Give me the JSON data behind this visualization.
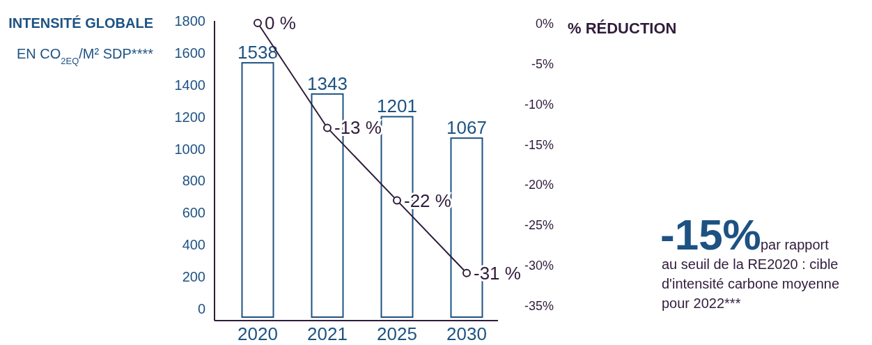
{
  "chart_data": {
    "type": "bar",
    "title": "INTENSITÉ GLOBALE",
    "subtitle": "EN CO$_{2EQ}$/M² SDP****",
    "y2label": "% RÉDUCTION",
    "categories": [
      "2020",
      "2021",
      "2025",
      "2030"
    ],
    "series": [
      {
        "color": "#1d5282",
        "values": [
          1538,
          1343,
          1201,
          1067
        ],
        "value_labels": [
          "1538",
          "1343",
          "1201",
          "1067"
        ]
      },
      {
        "type": "line",
        "axis": "y2",
        "color": "#2f1b3b",
        "values": [
          0,
          -13,
          -22,
          -31
        ],
        "value_labels": [
          "0 %",
          "-13 %",
          "-22 %",
          "-31 %"
        ]
      }
    ],
    "ylim": [
      0,
      1800
    ],
    "yticks": [
      0,
      200,
      400,
      600,
      800,
      1000,
      1200,
      1400,
      1600,
      1800
    ],
    "y2lim": [
      -35,
      0
    ],
    "y2ticks": [
      {
        "value": 0,
        "label": "0%"
      },
      {
        "value": -5,
        "label": "-5%"
      },
      {
        "value": -10,
        "label": "-10%"
      },
      {
        "value": -15,
        "label": "-15%"
      },
      {
        "value": -20,
        "label": "-20%"
      },
      {
        "value": -25,
        "label": "-25%"
      },
      {
        "value": -30,
        "label": "-30%"
      },
      {
        "value": -35,
        "label": "-35%"
      }
    ],
    "marker": "circle",
    "grid": false,
    "annotations": [
      "-15%",
      "par rapport au seuil de la RE2020 : cible d'intensité carbone moyenne pour 2022***"
    ]
  }
}
